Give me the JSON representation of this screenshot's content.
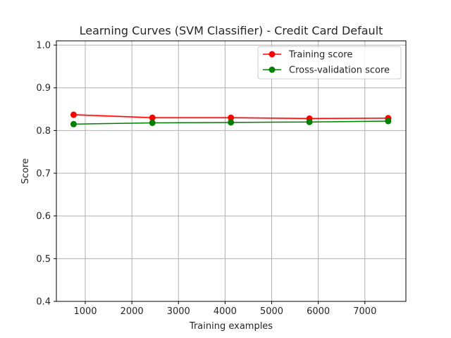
{
  "chart_data": {
    "type": "line",
    "title": "Learning Curves (SVM Classifier) - Credit Card Default",
    "xlabel": "Training examples",
    "ylabel": "Score",
    "xlim": [
      380,
      7880
    ],
    "ylim": [
      0.4,
      1.01
    ],
    "xticks": [
      1000,
      2000,
      3000,
      4000,
      5000,
      6000,
      7000
    ],
    "yticks": [
      0.4,
      0.5,
      0.6,
      0.7,
      0.8,
      0.9,
      1.0
    ],
    "grid": true,
    "legend_position": "top-right",
    "x": [
      750,
      2440,
      4125,
      5810,
      7500
    ],
    "series": [
      {
        "name": "Training score",
        "color": "#ff0000",
        "values": [
          0.837,
          0.83,
          0.83,
          0.828,
          0.829
        ],
        "band": [
          0.004,
          0.003,
          0.003,
          0.003,
          0.002
        ]
      },
      {
        "name": "Cross-validation score",
        "color": "#008000",
        "values": [
          0.815,
          0.818,
          0.819,
          0.82,
          0.822
        ],
        "band": [
          0.001,
          0.001,
          0.001,
          0.001,
          0.001
        ]
      }
    ]
  }
}
